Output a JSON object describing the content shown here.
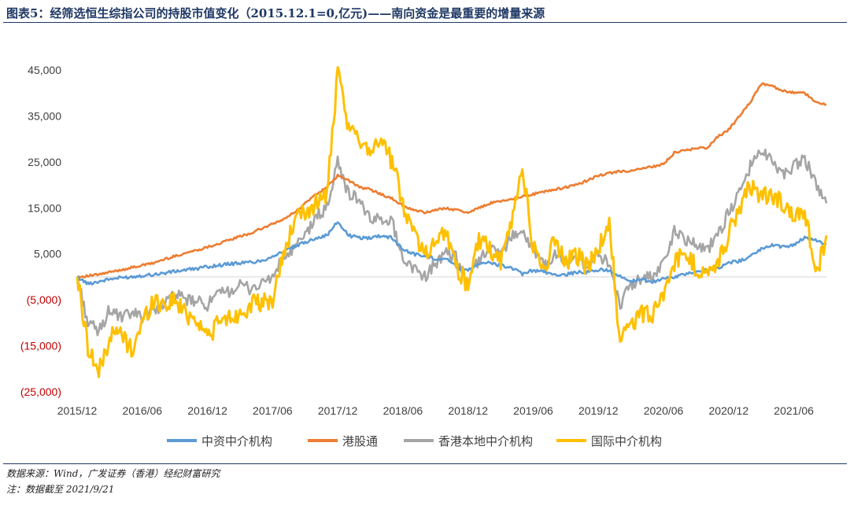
{
  "title": "图表5：经筛选恒生综指公司的持股市值变化（2015.12.1=0,亿元)——南向资金是最重要的增量来源",
  "notes": {
    "source": "数据来源：Wind，广发证券（香港）经纪财富研究",
    "note": "注：数据截至 2021/9/21"
  },
  "colors": {
    "axis_text": "#404040",
    "negative_tick": "#c00000",
    "zero_line": "#d9d9d9",
    "title": "#1f3864"
  },
  "chart_data": {
    "type": "line",
    "ylim": [
      -25000,
      45000
    ],
    "y_ticks": [
      45000,
      35000,
      25000,
      15000,
      5000,
      -5000,
      -15000,
      -25000
    ],
    "y_tick_labels": [
      "45,000",
      "35,000",
      "25,000",
      "15,000",
      "5,000",
      "(5,000)",
      "(15,000)",
      "(25,000)"
    ],
    "x_range": [
      "2015-12-01",
      "2021-09-21"
    ],
    "x_ticks": [
      "2015/12",
      "2016/06",
      "2016/12",
      "2017/06",
      "2017/12",
      "2018/06",
      "2018/12",
      "2019/06",
      "2019/12",
      "2020/06",
      "2020/12",
      "2021/06"
    ],
    "legend_position": "bottom",
    "grid": false,
    "x": [
      "2015-12",
      "2016-01",
      "2016-02",
      "2016-03",
      "2016-04",
      "2016-05",
      "2016-06",
      "2016-07",
      "2016-08",
      "2016-09",
      "2016-10",
      "2016-11",
      "2016-12",
      "2017-01",
      "2017-02",
      "2017-03",
      "2017-04",
      "2017-05",
      "2017-06",
      "2017-07",
      "2017-08",
      "2017-09",
      "2017-10",
      "2017-11",
      "2017-12",
      "2018-01",
      "2018-02",
      "2018-03",
      "2018-04",
      "2018-05",
      "2018-06",
      "2018-07",
      "2018-08",
      "2018-09",
      "2018-10",
      "2018-11",
      "2018-12",
      "2019-01",
      "2019-02",
      "2019-03",
      "2019-04",
      "2019-05",
      "2019-06",
      "2019-07",
      "2019-08",
      "2019-09",
      "2019-10",
      "2019-11",
      "2019-12",
      "2020-01",
      "2020-02",
      "2020-03",
      "2020-04",
      "2020-05",
      "2020-06",
      "2020-07",
      "2020-08",
      "2020-09",
      "2020-10",
      "2020-11",
      "2020-12",
      "2021-01",
      "2021-02",
      "2021-03",
      "2021-04",
      "2021-05",
      "2021-06",
      "2021-07",
      "2021-08",
      "2021-09"
    ],
    "series": [
      {
        "name": "中资中介机构",
        "color": "#5b9bd5",
        "values": [
          0,
          -1500,
          -1000,
          -500,
          -200,
          0,
          300,
          500,
          800,
          1200,
          1500,
          1800,
          2200,
          2500,
          2800,
          3000,
          3200,
          3500,
          4500,
          5500,
          6500,
          7500,
          8500,
          9000,
          12000,
          9000,
          8500,
          8500,
          9000,
          8500,
          6000,
          5000,
          4500,
          4000,
          4000,
          2000,
          1500,
          3000,
          3000,
          2500,
          2000,
          500,
          1500,
          1000,
          500,
          500,
          1000,
          1000,
          1500,
          1500,
          0,
          -1000,
          -500,
          -1000,
          -500,
          0,
          500,
          1000,
          1500,
          2000,
          3000,
          3500,
          4500,
          6000,
          7000,
          6500,
          7000,
          8500,
          8000,
          7000
        ]
      },
      {
        "name": "港股通",
        "color": "#ed7d31",
        "values": [
          0,
          200,
          500,
          1000,
          1500,
          2000,
          2500,
          3000,
          3800,
          4500,
          5200,
          5800,
          6500,
          7200,
          8000,
          8800,
          9500,
          10500,
          11500,
          12500,
          14000,
          16000,
          18000,
          19500,
          22000,
          21000,
          19500,
          19000,
          18000,
          17000,
          15500,
          14500,
          14000,
          14500,
          15000,
          14500,
          14000,
          15000,
          16000,
          16500,
          17000,
          17500,
          18000,
          18500,
          19000,
          19500,
          20000,
          21000,
          22000,
          22500,
          23000,
          23000,
          23500,
          24000,
          24500,
          27000,
          27500,
          28000,
          28000,
          30500,
          32000,
          35000,
          38000,
          42000,
          41500,
          40500,
          40000,
          40000,
          38000,
          37500
        ]
      },
      {
        "name": "香港本地中介机构",
        "color": "#a5a5a5",
        "values": [
          0,
          -10000,
          -12000,
          -7000,
          -9000,
          -8000,
          -8500,
          -7000,
          -6000,
          -4000,
          -5000,
          -5500,
          -6000,
          -4000,
          -3000,
          -2000,
          -2500,
          -1500,
          0,
          4000,
          6000,
          9000,
          13000,
          15000,
          25000,
          18000,
          17000,
          12000,
          13000,
          12000,
          4000,
          2000,
          0,
          3000,
          5000,
          4000,
          -2000,
          4000,
          6000,
          5000,
          9000,
          10000,
          6000,
          2000,
          5000,
          3000,
          4000,
          2000,
          5000,
          3000,
          -6000,
          -2000,
          0,
          0,
          3000,
          10000,
          8000,
          7500,
          6000,
          9000,
          14000,
          18000,
          24000,
          28000,
          25000,
          22000,
          24000,
          26000,
          20000,
          16000
        ]
      },
      {
        "name": "国际中介机构",
        "color": "#ffc000",
        "values": [
          0,
          -15000,
          -21000,
          -13000,
          -12000,
          -16000,
          -10000,
          -5000,
          -6000,
          -5000,
          -8000,
          -9000,
          -13000,
          -10000,
          -9000,
          -8000,
          -6000,
          -6000,
          -5000,
          5000,
          12000,
          14000,
          16000,
          18000,
          44000,
          32000,
          30000,
          28000,
          30000,
          25000,
          16000,
          10000,
          5000,
          8000,
          10000,
          2000,
          -2000,
          8000,
          6000,
          3000,
          12000,
          24000,
          6000,
          2000,
          8000,
          3000,
          5000,
          2000,
          6000,
          13000,
          -15000,
          -10000,
          -8000,
          -8000,
          -4000,
          3000,
          5000,
          2000,
          0,
          3000,
          9000,
          15000,
          20000,
          18000,
          17000,
          16000,
          14000,
          15000,
          0,
          9000
        ]
      }
    ]
  }
}
